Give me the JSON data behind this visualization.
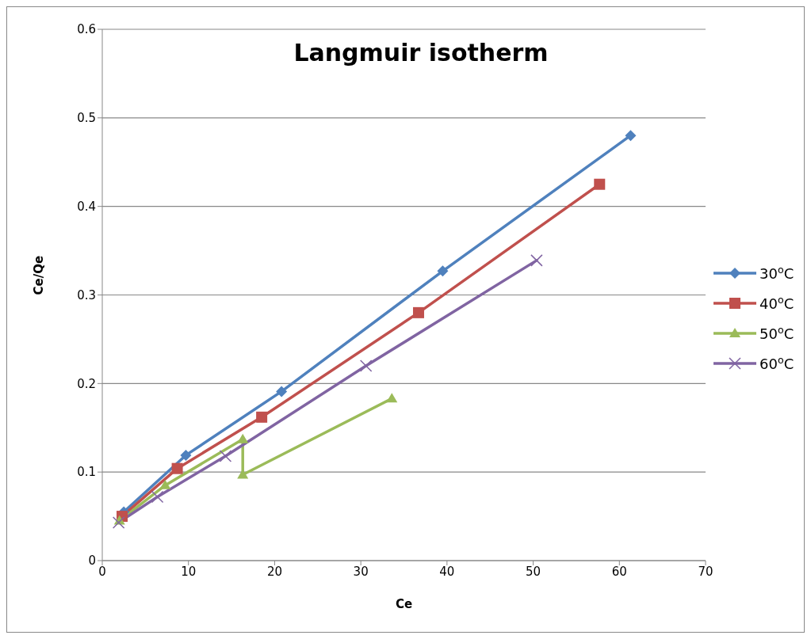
{
  "chart_data": {
    "type": "line",
    "title": "Langmuir isotherm",
    "xlabel": "Ce",
    "ylabel": "Ce/Qe",
    "xlim": [
      0,
      70
    ],
    "xticks": [
      0,
      10,
      20,
      30,
      40,
      50,
      60,
      70
    ],
    "ylim": [
      0,
      0.6
    ],
    "yticks": [
      0,
      0.1,
      0.2,
      0.3,
      0.4,
      0.5,
      0.6
    ],
    "grid": "y",
    "legend": "right",
    "series": [
      {
        "name": "30$^{o}$C",
        "color": "#4f81bd",
        "marker": "diamond",
        "x": [
          2.5,
          9.7,
          20.8,
          39.5,
          61.3
        ],
        "values": [
          0.055,
          0.119,
          0.191,
          0.327,
          0.48
        ]
      },
      {
        "name": "40$^{o}$C",
        "color": "#c0504d",
        "marker": "square",
        "x": [
          2.3,
          8.7,
          18.5,
          36.7,
          57.7
        ],
        "values": [
          0.05,
          0.104,
          0.162,
          0.28,
          0.425
        ]
      },
      {
        "name": "50$^{o}$C",
        "color": "#9bbb59",
        "marker": "triangle",
        "x": [
          2,
          7.3,
          16.3,
          16.3,
          33.6
        ],
        "values": [
          0.045,
          0.085,
          0.137,
          0.097,
          0.183
        ]
      },
      {
        "name": "60$^{o}$C",
        "color": "#8064a2",
        "marker": "cross",
        "x": [
          1.9,
          6.4,
          14.3,
          30.6,
          50.4
        ],
        "values": [
          0.043,
          0.072,
          0.118,
          0.22,
          0.339
        ]
      }
    ]
  }
}
